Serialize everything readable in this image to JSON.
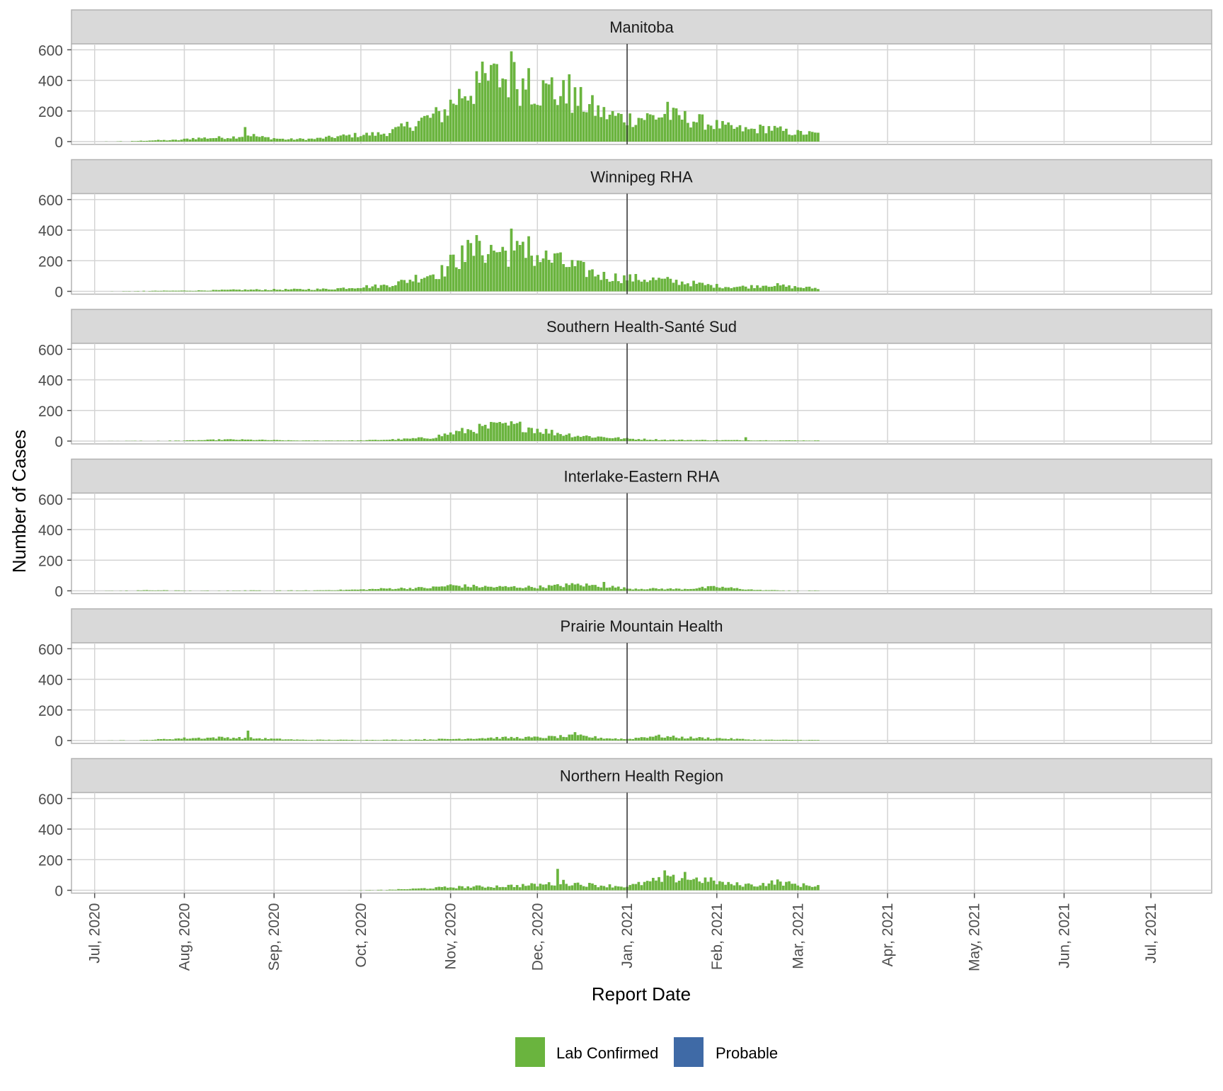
{
  "chart_data": {
    "type": "bar",
    "stacked": true,
    "facets": "vertical",
    "xlabel": "Report Date",
    "ylabel": "Number of Cases",
    "x_ticks": [
      "Jul, 2020",
      "Aug, 2020",
      "Sep, 2020",
      "Oct, 2020",
      "Nov, 2020",
      "Dec, 2020",
      "Jan, 2021",
      "Feb, 2021",
      "Mar, 2021",
      "Apr, 2021",
      "May, 2021",
      "Jun, 2021",
      "Jul, 2021"
    ],
    "y_ticks": [
      "0",
      "200",
      "400",
      "600"
    ],
    "ylim": [
      0,
      620
    ],
    "xlim": [
      "2020-06-23",
      "2021-07-22"
    ],
    "reference_line_date": "2021-01-01",
    "grid": true,
    "legend_position": "bottom",
    "legend": [
      {
        "name": "Lab Confirmed",
        "color": "#6ab43e"
      },
      {
        "name": "Probable",
        "color": "#3f6aa6"
      }
    ],
    "series_colors": {
      "Lab Confirmed": "#6ab43e",
      "Probable": "#3f6aa6"
    },
    "x_start_date": "2020-07-01",
    "x_end_date": "2021-03-08",
    "panels": [
      {
        "title": "Manitoba",
        "keyframes": [
          [
            "2020-07-01",
            0
          ],
          [
            "2020-07-15",
            3
          ],
          [
            "2020-07-20",
            8
          ],
          [
            "2020-07-30",
            10
          ],
          [
            "2020-08-04",
            22
          ],
          [
            "2020-08-12",
            25
          ],
          [
            "2020-08-18",
            30
          ],
          [
            "2020-08-24",
            45
          ],
          [
            "2020-08-27",
            30
          ],
          [
            "2020-09-05",
            15
          ],
          [
            "2020-09-15",
            18
          ],
          [
            "2020-09-24",
            35
          ],
          [
            "2020-10-01",
            45
          ],
          [
            "2020-10-08",
            50
          ],
          [
            "2020-10-15",
            85
          ],
          [
            "2020-10-22",
            140
          ],
          [
            "2020-10-29",
            180
          ],
          [
            "2020-11-05",
            320
          ],
          [
            "2020-11-12",
            380
          ],
          [
            "2020-11-19",
            420
          ],
          [
            "2020-11-26",
            380
          ],
          [
            "2020-12-03",
            330
          ],
          [
            "2020-12-10",
            300
          ],
          [
            "2020-12-17",
            250
          ],
          [
            "2020-12-24",
            180
          ],
          [
            "2021-01-01",
            150
          ],
          [
            "2021-01-08",
            160
          ],
          [
            "2021-01-15",
            170
          ],
          [
            "2021-01-22",
            150
          ],
          [
            "2021-01-29",
            120
          ],
          [
            "2021-02-05",
            90
          ],
          [
            "2021-02-12",
            75
          ],
          [
            "2021-02-19",
            90
          ],
          [
            "2021-02-26",
            60
          ],
          [
            "2021-03-08",
            50
          ]
        ],
        "spikes": [
          [
            "2020-08-22",
            95
          ],
          [
            "2020-11-10",
            460
          ],
          [
            "2020-11-16",
            510
          ],
          [
            "2020-11-22",
            590
          ],
          [
            "2020-11-28",
            480
          ],
          [
            "2020-12-06",
            420
          ],
          [
            "2020-12-12",
            440
          ],
          [
            "2021-01-15",
            260
          ]
        ]
      },
      {
        "title": "Winnipeg RHA",
        "keyframes": [
          [
            "2020-07-01",
            0
          ],
          [
            "2020-07-20",
            3
          ],
          [
            "2020-08-05",
            5
          ],
          [
            "2020-08-20",
            10
          ],
          [
            "2020-09-05",
            12
          ],
          [
            "2020-09-20",
            15
          ],
          [
            "2020-10-01",
            30
          ],
          [
            "2020-10-08",
            35
          ],
          [
            "2020-10-15",
            60
          ],
          [
            "2020-10-22",
            100
          ],
          [
            "2020-10-29",
            130
          ],
          [
            "2020-11-05",
            240
          ],
          [
            "2020-11-12",
            280
          ],
          [
            "2020-11-19",
            260
          ],
          [
            "2020-11-26",
            250
          ],
          [
            "2020-12-03",
            220
          ],
          [
            "2020-12-10",
            180
          ],
          [
            "2020-12-17",
            140
          ],
          [
            "2020-12-24",
            100
          ],
          [
            "2021-01-01",
            85
          ],
          [
            "2021-01-08",
            80
          ],
          [
            "2021-01-15",
            70
          ],
          [
            "2021-01-22",
            55
          ],
          [
            "2021-01-29",
            40
          ],
          [
            "2021-02-05",
            30
          ],
          [
            "2021-02-12",
            30
          ],
          [
            "2021-02-19",
            45
          ],
          [
            "2021-02-26",
            30
          ],
          [
            "2021-03-08",
            20
          ]
        ],
        "spikes": [
          [
            "2020-11-05",
            300
          ],
          [
            "2020-11-11",
            330
          ],
          [
            "2020-11-22",
            410
          ],
          [
            "2020-11-28",
            360
          ],
          [
            "2020-12-08",
            250
          ]
        ]
      },
      {
        "title": "Southern Health-Santé Sud",
        "keyframes": [
          [
            "2020-07-01",
            0
          ],
          [
            "2020-08-01",
            3
          ],
          [
            "2020-08-15",
            10
          ],
          [
            "2020-08-25",
            8
          ],
          [
            "2020-09-10",
            3
          ],
          [
            "2020-10-01",
            4
          ],
          [
            "2020-10-15",
            12
          ],
          [
            "2020-10-25",
            22
          ],
          [
            "2020-11-01",
            50
          ],
          [
            "2020-11-10",
            80
          ],
          [
            "2020-11-20",
            100
          ],
          [
            "2020-11-27",
            95
          ],
          [
            "2020-12-05",
            60
          ],
          [
            "2020-12-15",
            35
          ],
          [
            "2020-12-25",
            25
          ],
          [
            "2021-01-01",
            15
          ],
          [
            "2021-01-15",
            8
          ],
          [
            "2021-01-31",
            6
          ],
          [
            "2021-02-15",
            5
          ],
          [
            "2021-03-08",
            3
          ]
        ],
        "spikes": [
          [
            "2020-11-15",
            125
          ],
          [
            "2020-11-20",
            120
          ],
          [
            "2021-02-11",
            25
          ]
        ]
      },
      {
        "title": "Interlake-Eastern RHA",
        "keyframes": [
          [
            "2020-07-01",
            0
          ],
          [
            "2020-07-20",
            4
          ],
          [
            "2020-08-01",
            2
          ],
          [
            "2020-09-15",
            3
          ],
          [
            "2020-10-01",
            8
          ],
          [
            "2020-10-10",
            15
          ],
          [
            "2020-10-25",
            20
          ],
          [
            "2020-11-01",
            35
          ],
          [
            "2020-11-15",
            25
          ],
          [
            "2020-12-01",
            25
          ],
          [
            "2020-12-15",
            40
          ],
          [
            "2020-12-25",
            30
          ],
          [
            "2021-01-01",
            15
          ],
          [
            "2021-01-20",
            12
          ],
          [
            "2021-02-01",
            25
          ],
          [
            "2021-02-15",
            5
          ],
          [
            "2021-03-01",
            2
          ]
        ],
        "spikes": [
          [
            "2020-12-11",
            48
          ],
          [
            "2020-12-24",
            58
          ]
        ]
      },
      {
        "title": "Prairie Mountain Health",
        "keyframes": [
          [
            "2020-07-01",
            0
          ],
          [
            "2020-07-18",
            3
          ],
          [
            "2020-08-01",
            15
          ],
          [
            "2020-08-15",
            20
          ],
          [
            "2020-08-25",
            15
          ],
          [
            "2020-09-10",
            5
          ],
          [
            "2020-10-01",
            4
          ],
          [
            "2020-10-15",
            5
          ],
          [
            "2020-11-01",
            10
          ],
          [
            "2020-11-15",
            18
          ],
          [
            "2020-12-01",
            20
          ],
          [
            "2020-12-15",
            30
          ],
          [
            "2020-12-25",
            15
          ],
          [
            "2021-01-01",
            10
          ],
          [
            "2021-01-10",
            30
          ],
          [
            "2021-01-20",
            20
          ],
          [
            "2021-02-01",
            15
          ],
          [
            "2021-02-15",
            5
          ],
          [
            "2021-03-08",
            3
          ]
        ],
        "spikes": [
          [
            "2020-08-23",
            65
          ],
          [
            "2020-12-14",
            55
          ]
        ]
      },
      {
        "title": "Northern Health Region",
        "keyframes": [
          [
            "2020-07-01",
            0
          ],
          [
            "2020-09-25",
            0
          ],
          [
            "2020-10-10",
            3
          ],
          [
            "2020-10-20",
            10
          ],
          [
            "2020-11-01",
            20
          ],
          [
            "2020-11-15",
            25
          ],
          [
            "2020-12-01",
            35
          ],
          [
            "2020-12-10",
            50
          ],
          [
            "2020-12-20",
            35
          ],
          [
            "2021-01-01",
            25
          ],
          [
            "2021-01-10",
            60
          ],
          [
            "2021-01-20",
            80
          ],
          [
            "2021-01-29",
            65
          ],
          [
            "2021-02-05",
            40
          ],
          [
            "2021-02-15",
            35
          ],
          [
            "2021-02-22",
            55
          ],
          [
            "2021-03-01",
            35
          ],
          [
            "2021-03-08",
            30
          ]
        ],
        "spikes": [
          [
            "2020-12-08",
            140
          ],
          [
            "2021-01-14",
            130
          ],
          [
            "2021-01-21",
            120
          ]
        ]
      }
    ]
  }
}
